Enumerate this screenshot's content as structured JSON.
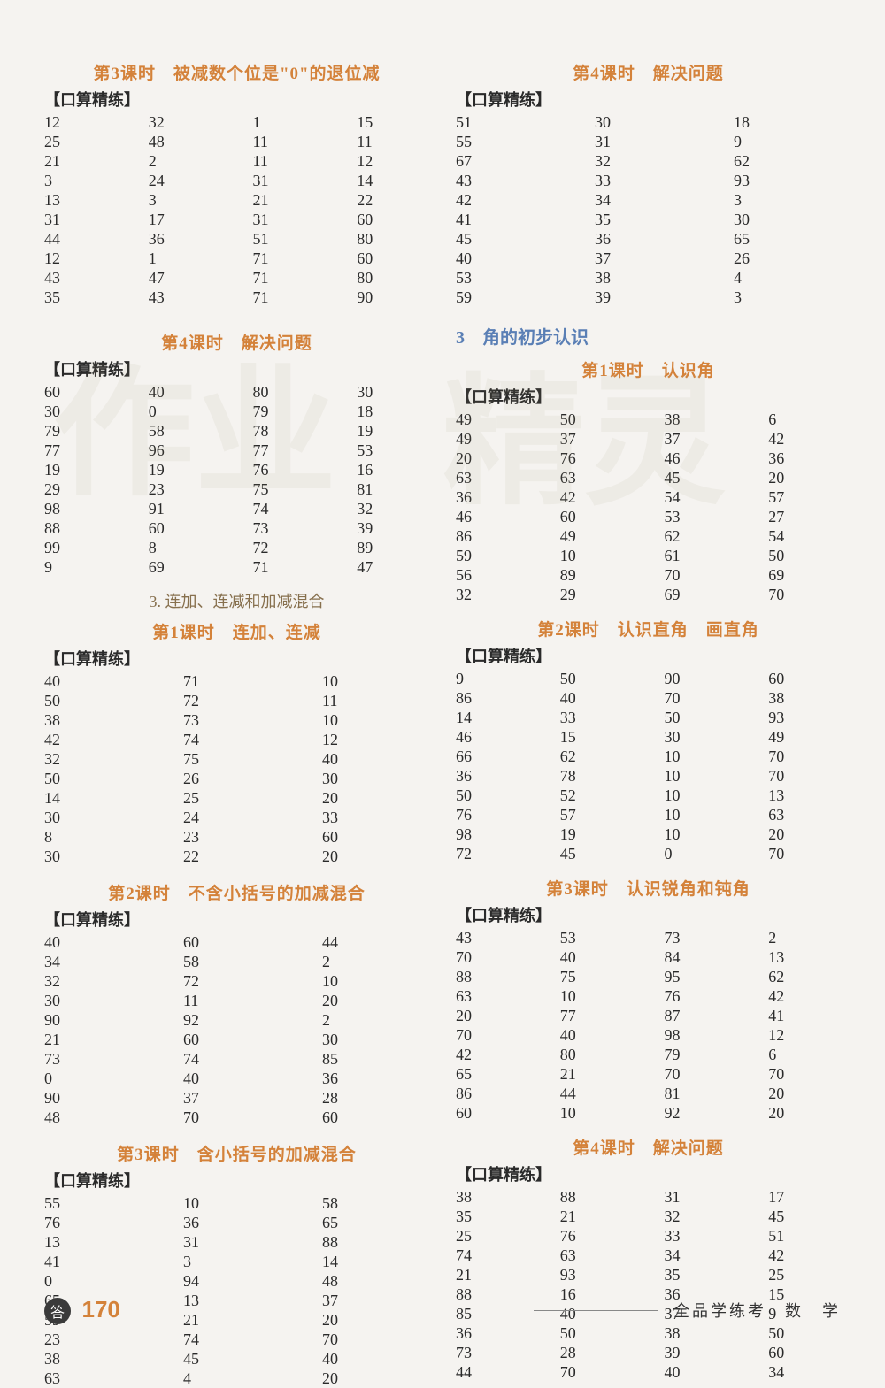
{
  "page": {
    "badge": "答",
    "num": "170",
    "footer_right": "全品学练考　数　学"
  },
  "watermark": {
    "t1": "作业",
    "t2": "精灵"
  },
  "labels": {
    "practice": "【口算精练】"
  },
  "colors": {
    "title_color": "#d4823a",
    "chapter_color": "#5a7fb5",
    "sub_color": "#87704e",
    "text_color": "#2a2a2a",
    "background": "#f5f3f0"
  },
  "typography": {
    "body_fontsize": 18,
    "title_fontsize": 19,
    "line_height": 22
  },
  "left": {
    "s1": {
      "title": "第3课时　被减数个位是\"0\"的退位减",
      "cols": 4,
      "rows": [
        [
          "12",
          "32",
          "1",
          "15"
        ],
        [
          "25",
          "48",
          "11",
          "11"
        ],
        [
          "21",
          "2",
          "11",
          "12"
        ],
        [
          "3",
          "24",
          "31",
          "14"
        ],
        [
          "13",
          "3",
          "21",
          "22"
        ],
        [
          "31",
          "17",
          "31",
          "60"
        ],
        [
          "44",
          "36",
          "51",
          "80"
        ],
        [
          "12",
          "1",
          "71",
          "60"
        ],
        [
          "43",
          "47",
          "71",
          "80"
        ],
        [
          "35",
          "43",
          "71",
          "90"
        ]
      ]
    },
    "s2": {
      "title": "第4课时　解决问题",
      "cols": 4,
      "rows": [
        [
          "60",
          "40",
          "80",
          "30"
        ],
        [
          "30",
          "0",
          "79",
          "18"
        ],
        [
          "79",
          "58",
          "78",
          "19"
        ],
        [
          "77",
          "96",
          "77",
          "53"
        ],
        [
          "19",
          "19",
          "76",
          "16"
        ],
        [
          "29",
          "23",
          "75",
          "81"
        ],
        [
          "98",
          "91",
          "74",
          "32"
        ],
        [
          "88",
          "60",
          "73",
          "39"
        ],
        [
          "99",
          "8",
          "72",
          "89"
        ],
        [
          "9",
          "69",
          "71",
          "47"
        ]
      ]
    },
    "sub3": "3. 连加、连减和加减混合",
    "s3": {
      "title": "第1课时　连加、连减",
      "cols": 3,
      "rows": [
        [
          "40",
          "71",
          "10"
        ],
        [
          "50",
          "72",
          "11"
        ],
        [
          "38",
          "73",
          "10"
        ],
        [
          "42",
          "74",
          "12"
        ],
        [
          "32",
          "75",
          "40"
        ],
        [
          "50",
          "26",
          "30"
        ],
        [
          "14",
          "25",
          "20"
        ],
        [
          "30",
          "24",
          "33"
        ],
        [
          "8",
          "23",
          "60"
        ],
        [
          "30",
          "22",
          "20"
        ]
      ]
    },
    "s4": {
      "title": "第2课时　不含小括号的加减混合",
      "cols": 3,
      "rows": [
        [
          "40",
          "60",
          "44"
        ],
        [
          "34",
          "58",
          "2"
        ],
        [
          "32",
          "72",
          "10"
        ],
        [
          "30",
          "11",
          "20"
        ],
        [
          "90",
          "92",
          "2"
        ],
        [
          "21",
          "60",
          "30"
        ],
        [
          "73",
          "74",
          "85"
        ],
        [
          "0",
          "40",
          "36"
        ],
        [
          "90",
          "37",
          "28"
        ],
        [
          "48",
          "70",
          "60"
        ]
      ]
    },
    "s5": {
      "title": "第3课时　含小括号的加减混合",
      "cols": 3,
      "rows": [
        [
          "55",
          "10",
          "58"
        ],
        [
          "76",
          "36",
          "65"
        ],
        [
          "13",
          "31",
          "88"
        ],
        [
          "41",
          "3",
          "14"
        ],
        [
          "0",
          "94",
          "48"
        ],
        [
          "65",
          "13",
          "37"
        ],
        [
          "59",
          "21",
          "20"
        ],
        [
          "23",
          "74",
          "70"
        ],
        [
          "38",
          "45",
          "40"
        ],
        [
          "63",
          "4",
          "20"
        ]
      ]
    }
  },
  "right": {
    "s1": {
      "title": "第4课时　解决问题",
      "cols": 3,
      "rows": [
        [
          "51",
          "30",
          "18"
        ],
        [
          "55",
          "31",
          "9"
        ],
        [
          "67",
          "32",
          "62"
        ],
        [
          "43",
          "33",
          "93"
        ],
        [
          "42",
          "34",
          "3"
        ],
        [
          "41",
          "35",
          "30"
        ],
        [
          "45",
          "36",
          "65"
        ],
        [
          "40",
          "37",
          "26"
        ],
        [
          "53",
          "38",
          "4"
        ],
        [
          "59",
          "39",
          "3"
        ]
      ]
    },
    "chapter": "3　角的初步认识",
    "s2": {
      "title": "第1课时　认识角",
      "cols": 4,
      "rows": [
        [
          "49",
          "50",
          "38",
          "6"
        ],
        [
          "49",
          "37",
          "37",
          "42"
        ],
        [
          "20",
          "76",
          "46",
          "36"
        ],
        [
          "63",
          "63",
          "45",
          "20"
        ],
        [
          "36",
          "42",
          "54",
          "57"
        ],
        [
          "46",
          "60",
          "53",
          "27"
        ],
        [
          "86",
          "49",
          "62",
          "54"
        ],
        [
          "59",
          "10",
          "61",
          "50"
        ],
        [
          "56",
          "89",
          "70",
          "69"
        ],
        [
          "32",
          "29",
          "69",
          "70"
        ]
      ]
    },
    "s3": {
      "title": "第2课时　认识直角　画直角",
      "cols": 4,
      "rows": [
        [
          "9",
          "50",
          "90",
          "60"
        ],
        [
          "86",
          "40",
          "70",
          "38"
        ],
        [
          "14",
          "33",
          "50",
          "93"
        ],
        [
          "46",
          "15",
          "30",
          "49"
        ],
        [
          "66",
          "62",
          "10",
          "70"
        ],
        [
          "36",
          "78",
          "10",
          "70"
        ],
        [
          "50",
          "52",
          "10",
          "13"
        ],
        [
          "76",
          "57",
          "10",
          "63"
        ],
        [
          "98",
          "19",
          "10",
          "20"
        ],
        [
          "72",
          "45",
          "0",
          "70"
        ]
      ]
    },
    "s4": {
      "title": "第3课时　认识锐角和钝角",
      "cols": 4,
      "rows": [
        [
          "43",
          "53",
          "73",
          "2"
        ],
        [
          "70",
          "40",
          "84",
          "13"
        ],
        [
          "88",
          "75",
          "95",
          "62"
        ],
        [
          "63",
          "10",
          "76",
          "42"
        ],
        [
          "20",
          "77",
          "87",
          "41"
        ],
        [
          "70",
          "40",
          "98",
          "12"
        ],
        [
          "42",
          "80",
          "79",
          "6"
        ],
        [
          "65",
          "21",
          "70",
          "70"
        ],
        [
          "86",
          "44",
          "81",
          "20"
        ],
        [
          "60",
          "10",
          "92",
          "20"
        ]
      ]
    },
    "s5": {
      "title": "第4课时　解决问题",
      "cols": 4,
      "rows": [
        [
          "38",
          "88",
          "31",
          "17"
        ],
        [
          "35",
          "21",
          "32",
          "45"
        ],
        [
          "25",
          "76",
          "33",
          "51"
        ],
        [
          "74",
          "63",
          "34",
          "42"
        ],
        [
          "21",
          "93",
          "35",
          "25"
        ],
        [
          "88",
          "16",
          "36",
          "15"
        ],
        [
          "85",
          "40",
          "37",
          "9"
        ],
        [
          "36",
          "50",
          "38",
          "50"
        ],
        [
          "73",
          "28",
          "39",
          "60"
        ],
        [
          "44",
          "70",
          "40",
          "34"
        ]
      ]
    }
  }
}
